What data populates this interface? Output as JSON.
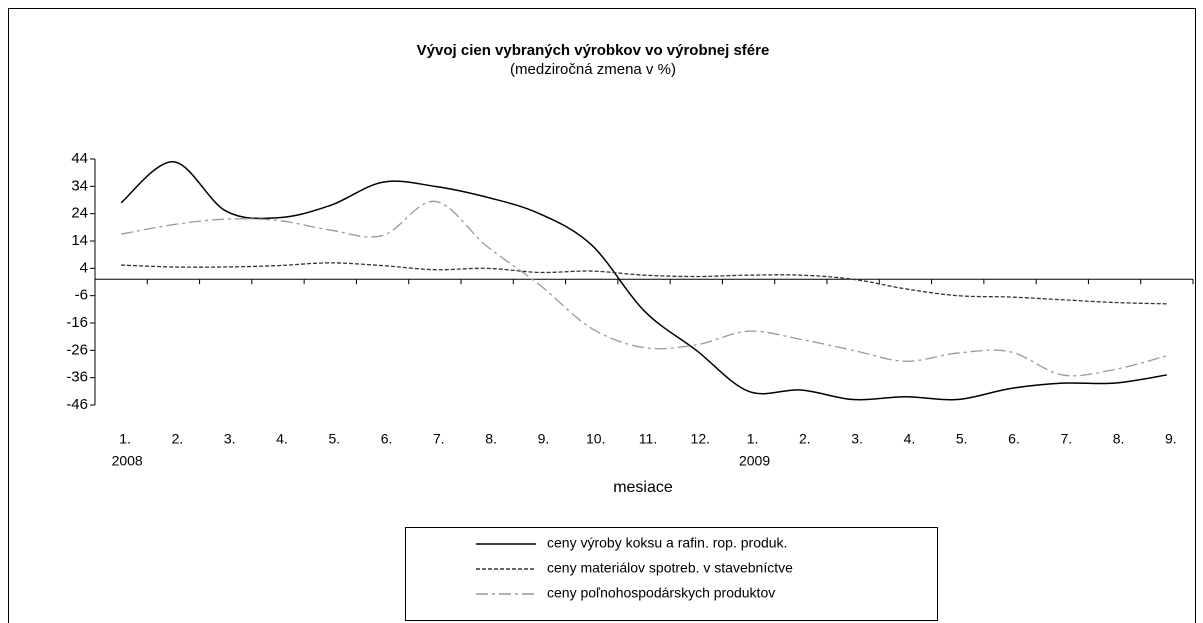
{
  "chart_data": {
    "type": "line",
    "title": "Vývoj cien vybraných výrobkov vo výrobnej sfére",
    "subtitle": "(medziročná zmena v %)",
    "x_label": "mesiace",
    "groups": [
      {
        "name": "2008",
        "categories": [
          "1.",
          "2.",
          "3.",
          "4.",
          "5.",
          "6.",
          "7.",
          "8.",
          "9.",
          "10.",
          "11.",
          "12."
        ]
      },
      {
        "name": "2009",
        "categories": [
          "1.",
          "2.",
          "3.",
          "4.",
          "5.",
          "6.",
          "7.",
          "8.",
          "9."
        ]
      }
    ],
    "series": [
      {
        "name": "ceny výroby koksu a rafin. rop. produk.",
        "color": "#000000",
        "dash": "solid",
        "values": [
          28,
          43,
          25,
          22.5,
          27,
          35.5,
          34,
          30,
          24,
          12.5,
          -11.5,
          -26,
          -41,
          -40.5,
          -44,
          -43,
          -44,
          -40,
          -38,
          -38,
          -35
        ]
      },
      {
        "name": "ceny materiálov spotreb. v stavebníctve",
        "color": "#333333",
        "dash": "dashed",
        "values": [
          5.2,
          4.5,
          4.5,
          5,
          6,
          5,
          3.5,
          4,
          2.5,
          3,
          1.5,
          1,
          1.5,
          1.5,
          0,
          -3.5,
          -6,
          -6.5,
          -7.5,
          -8.5,
          -9
        ]
      },
      {
        "name": "ceny poľnohospodárskych produktov",
        "color": "#999999",
        "dash": "dashdot",
        "values": [
          16.5,
          20,
          22,
          21.5,
          18,
          16,
          28.5,
          12,
          -2,
          -18,
          -25,
          -24,
          -19,
          -22,
          -26,
          -30,
          -27,
          -26.5,
          -35,
          -33,
          -28
        ]
      }
    ],
    "ylim": [
      -46,
      44
    ],
    "yticks": [
      -46,
      -36,
      -26,
      -16,
      -6,
      4,
      14,
      24,
      34,
      44
    ],
    "grid": false,
    "legend": "bottom"
  }
}
